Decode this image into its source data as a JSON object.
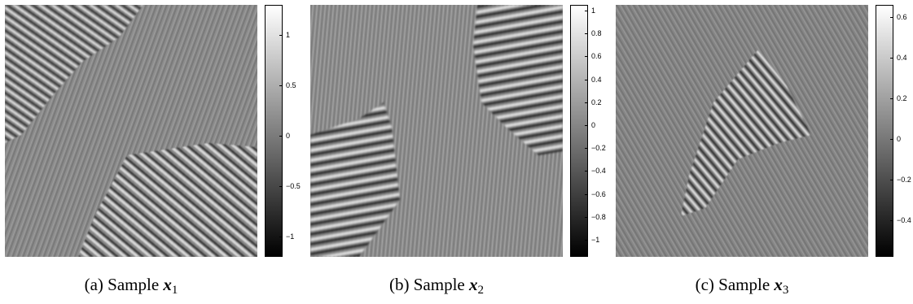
{
  "panels": [
    {
      "caption_prefix": "(a) Sample",
      "var": "x",
      "sub": "1",
      "colorbar": {
        "min": -1.2,
        "max": 1.3,
        "ticks": [
          "1",
          "0.5",
          "0",
          "−0.5",
          "−1"
        ]
      },
      "tick_values": [
        1,
        0.5,
        0,
        -0.5,
        -1
      ]
    },
    {
      "caption_prefix": "(b) Sample",
      "var": "x",
      "sub": "2",
      "colorbar": {
        "min": -1.15,
        "max": 1.05,
        "ticks": [
          "1",
          "0.8",
          "0.6",
          "0.4",
          "0.2",
          "0",
          "−0.2",
          "−0.4",
          "−0.6",
          "−0.8",
          "−1"
        ]
      },
      "tick_values": [
        1,
        0.8,
        0.6,
        0.4,
        0.2,
        0,
        -0.2,
        -0.4,
        -0.6,
        -0.8,
        -1
      ]
    },
    {
      "caption_prefix": "(c) Sample",
      "var": "x",
      "sub": "3",
      "colorbar": {
        "min": -0.58,
        "max": 0.66,
        "ticks": [
          "0.6",
          "0.4",
          "0.2",
          "0",
          "−0.2",
          "−0.4"
        ]
      },
      "tick_values": [
        0.6,
        0.4,
        0.2,
        0,
        -0.2,
        -0.4
      ]
    }
  ],
  "colors": {
    "low": "#000000",
    "mid": "#808080",
    "high": "#ffffff"
  }
}
